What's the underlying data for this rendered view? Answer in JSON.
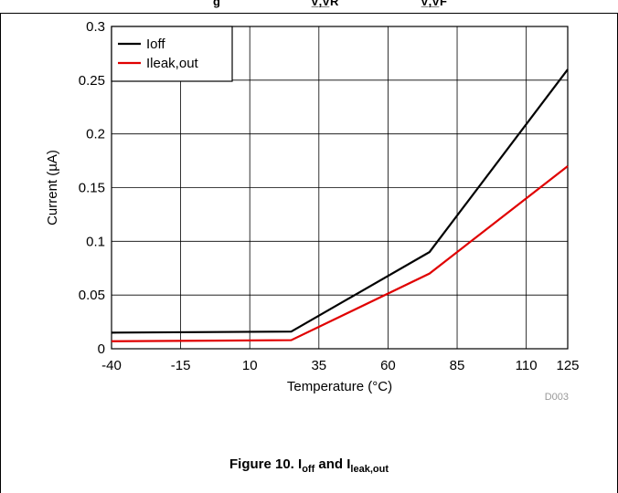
{
  "header": {
    "fragments": [
      "g",
      "V̲,̲V̲R",
      "V̲,̲V̲F"
    ]
  },
  "chart_data": {
    "type": "line",
    "xlabel": "Temperature (°C)",
    "ylabel": "Current (µA)",
    "xlim": [
      -40,
      125
    ],
    "ylim": [
      0,
      0.3
    ],
    "xticks": [
      -40,
      -15,
      10,
      35,
      60,
      85,
      110,
      125
    ],
    "xtick_labels": [
      "-40",
      "-15",
      "10",
      "35",
      "60",
      "85",
      "110",
      "125"
    ],
    "yticks": [
      0,
      0.05,
      0.1,
      0.15,
      0.2,
      0.25,
      0.3
    ],
    "ytick_labels": [
      "0",
      "0.05",
      "0.1",
      "0.15",
      "0.2",
      "0.25",
      "0.3"
    ],
    "grid": true,
    "legend_position": "top-left",
    "series": [
      {
        "name": "Ioff",
        "color": "#000000",
        "x": [
          -40,
          25,
          75,
          125
        ],
        "y": [
          0.015,
          0.016,
          0.09,
          0.26
        ]
      },
      {
        "name": "Ileak,out",
        "color": "#e00000",
        "x": [
          -40,
          25,
          75,
          125
        ],
        "y": [
          0.007,
          0.008,
          0.07,
          0.17
        ]
      }
    ],
    "watermark": "D003"
  },
  "caption": {
    "prefix": "Figure 10. I",
    "sub1": "off",
    "middle": " and I",
    "sub2": "leak,out"
  }
}
